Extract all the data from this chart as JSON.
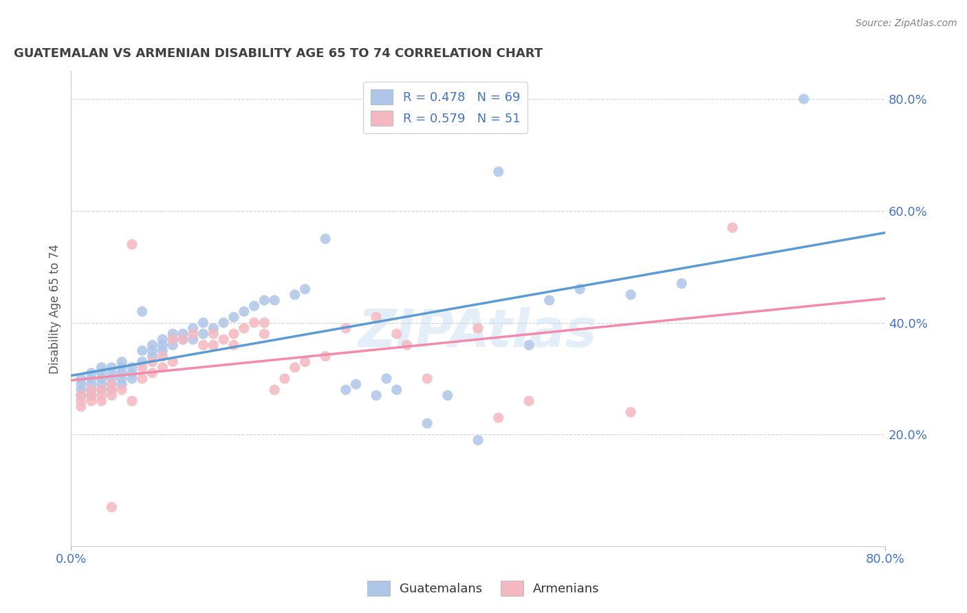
{
  "title": "GUATEMALAN VS ARMENIAN DISABILITY AGE 65 TO 74 CORRELATION CHART",
  "source_text": "Source: ZipAtlas.com",
  "ylabel": "Disability Age 65 to 74",
  "xmin": 0.0,
  "xmax": 0.8,
  "ymin": 0.0,
  "ymax": 0.85,
  "watermark_text": "ZIPAtlas",
  "guatemalan_color": "#aec6e8",
  "armenian_color": "#f4b8c1",
  "guatemalan_line_color": "#5b9bd5",
  "armenian_line_color": "#f48aab",
  "background_color": "#ffffff",
  "grid_color": "#cccccc",
  "title_color": "#404040",
  "axis_label_color": "#595959",
  "tick_label_color": "#4472c4",
  "legend_label_color": "#4472c4",
  "source_color": "#808080",
  "guatemalan_scatter": [
    [
      0.01,
      0.27
    ],
    [
      0.01,
      0.28
    ],
    [
      0.01,
      0.29
    ],
    [
      0.01,
      0.3
    ],
    [
      0.02,
      0.27
    ],
    [
      0.02,
      0.28
    ],
    [
      0.02,
      0.29
    ],
    [
      0.02,
      0.3
    ],
    [
      0.02,
      0.31
    ],
    [
      0.03,
      0.28
    ],
    [
      0.03,
      0.29
    ],
    [
      0.03,
      0.3
    ],
    [
      0.03,
      0.31
    ],
    [
      0.03,
      0.32
    ],
    [
      0.04,
      0.28
    ],
    [
      0.04,
      0.29
    ],
    [
      0.04,
      0.3
    ],
    [
      0.04,
      0.31
    ],
    [
      0.04,
      0.32
    ],
    [
      0.05,
      0.29
    ],
    [
      0.05,
      0.3
    ],
    [
      0.05,
      0.31
    ],
    [
      0.05,
      0.32
    ],
    [
      0.05,
      0.33
    ],
    [
      0.06,
      0.3
    ],
    [
      0.06,
      0.31
    ],
    [
      0.06,
      0.32
    ],
    [
      0.07,
      0.33
    ],
    [
      0.07,
      0.35
    ],
    [
      0.07,
      0.42
    ],
    [
      0.08,
      0.34
    ],
    [
      0.08,
      0.35
    ],
    [
      0.08,
      0.36
    ],
    [
      0.09,
      0.35
    ],
    [
      0.09,
      0.36
    ],
    [
      0.09,
      0.37
    ],
    [
      0.1,
      0.36
    ],
    [
      0.1,
      0.37
    ],
    [
      0.1,
      0.38
    ],
    [
      0.11,
      0.37
    ],
    [
      0.11,
      0.38
    ],
    [
      0.12,
      0.37
    ],
    [
      0.12,
      0.39
    ],
    [
      0.13,
      0.38
    ],
    [
      0.13,
      0.4
    ],
    [
      0.14,
      0.39
    ],
    [
      0.15,
      0.4
    ],
    [
      0.16,
      0.41
    ],
    [
      0.17,
      0.42
    ],
    [
      0.18,
      0.43
    ],
    [
      0.19,
      0.44
    ],
    [
      0.2,
      0.44
    ],
    [
      0.22,
      0.45
    ],
    [
      0.23,
      0.46
    ],
    [
      0.25,
      0.55
    ],
    [
      0.27,
      0.28
    ],
    [
      0.28,
      0.29
    ],
    [
      0.3,
      0.27
    ],
    [
      0.31,
      0.3
    ],
    [
      0.32,
      0.28
    ],
    [
      0.35,
      0.22
    ],
    [
      0.37,
      0.27
    ],
    [
      0.4,
      0.19
    ],
    [
      0.42,
      0.67
    ],
    [
      0.45,
      0.36
    ],
    [
      0.47,
      0.44
    ],
    [
      0.5,
      0.46
    ],
    [
      0.55,
      0.45
    ],
    [
      0.6,
      0.47
    ],
    [
      0.72,
      0.8
    ]
  ],
  "armenian_scatter": [
    [
      0.01,
      0.25
    ],
    [
      0.01,
      0.26
    ],
    [
      0.01,
      0.27
    ],
    [
      0.02,
      0.26
    ],
    [
      0.02,
      0.27
    ],
    [
      0.02,
      0.28
    ],
    [
      0.03,
      0.26
    ],
    [
      0.03,
      0.27
    ],
    [
      0.03,
      0.28
    ],
    [
      0.04,
      0.27
    ],
    [
      0.04,
      0.28
    ],
    [
      0.04,
      0.29
    ],
    [
      0.05,
      0.28
    ],
    [
      0.06,
      0.26
    ],
    [
      0.06,
      0.54
    ],
    [
      0.07,
      0.3
    ],
    [
      0.07,
      0.32
    ],
    [
      0.08,
      0.31
    ],
    [
      0.08,
      0.33
    ],
    [
      0.09,
      0.32
    ],
    [
      0.09,
      0.34
    ],
    [
      0.1,
      0.33
    ],
    [
      0.1,
      0.37
    ],
    [
      0.11,
      0.37
    ],
    [
      0.12,
      0.38
    ],
    [
      0.13,
      0.36
    ],
    [
      0.14,
      0.36
    ],
    [
      0.14,
      0.38
    ],
    [
      0.15,
      0.37
    ],
    [
      0.16,
      0.36
    ],
    [
      0.16,
      0.38
    ],
    [
      0.17,
      0.39
    ],
    [
      0.18,
      0.4
    ],
    [
      0.19,
      0.38
    ],
    [
      0.19,
      0.4
    ],
    [
      0.2,
      0.28
    ],
    [
      0.21,
      0.3
    ],
    [
      0.22,
      0.32
    ],
    [
      0.23,
      0.33
    ],
    [
      0.25,
      0.34
    ],
    [
      0.27,
      0.39
    ],
    [
      0.3,
      0.41
    ],
    [
      0.32,
      0.38
    ],
    [
      0.33,
      0.36
    ],
    [
      0.35,
      0.3
    ],
    [
      0.4,
      0.39
    ],
    [
      0.42,
      0.23
    ],
    [
      0.45,
      0.26
    ],
    [
      0.55,
      0.24
    ],
    [
      0.65,
      0.57
    ],
    [
      0.04,
      0.07
    ]
  ],
  "ytick_values": [
    0.2,
    0.4,
    0.6,
    0.8
  ],
  "ytick_labels": [
    "20.0%",
    "40.0%",
    "60.0%",
    "80.0%"
  ]
}
